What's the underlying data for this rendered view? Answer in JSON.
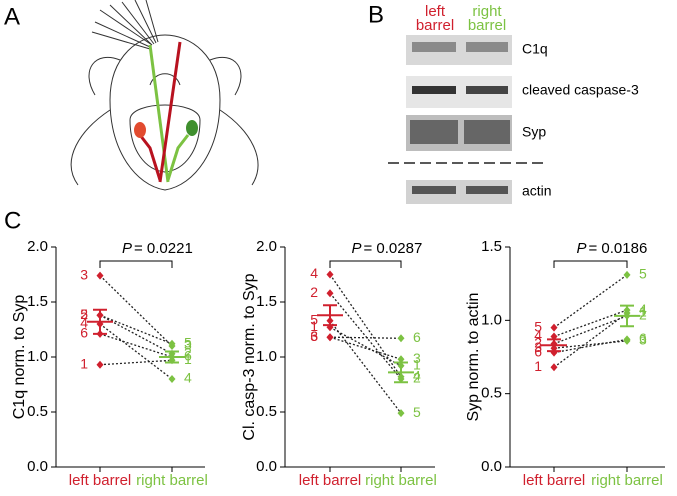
{
  "panels": {
    "a": "A",
    "b": "B",
    "c": "C"
  },
  "blot": {
    "columns": [
      "left\nbarrel",
      "right\nbarrel"
    ],
    "bands": [
      "C1q",
      "cleaved caspase-3",
      "Syp",
      "actin"
    ]
  },
  "chart_data": [
    {
      "type": "paired-dot",
      "ylabel": "C1q norm. to Syp",
      "categories": [
        "left barrel",
        "right barrel"
      ],
      "colors": [
        "#d0202e",
        "#7cc242"
      ],
      "ylim": [
        0,
        2
      ],
      "yticks": [
        {
          "value": 0,
          "label": "0.0"
        },
        0.5,
        {
          "value": 1,
          "label": "1.0"
        },
        1.5,
        {
          "value": 2,
          "label": "2.0"
        }
      ],
      "series": [
        {
          "name": "1",
          "values": [
            0.93,
            0.97
          ]
        },
        {
          "name": "2",
          "values": [
            1.38,
            1.03
          ]
        },
        {
          "name": "3",
          "values": [
            1.74,
            1.1
          ]
        },
        {
          "name": "4",
          "values": [
            1.3,
            0.8
          ]
        },
        {
          "name": "5",
          "values": [
            1.38,
            1.12
          ]
        },
        {
          "name": "6",
          "values": [
            1.21,
            1.0
          ]
        }
      ],
      "mean": [
        1.32,
        1.0
      ],
      "sem": [
        0.11,
        0.05
      ],
      "annotation": {
        "symbol": "P",
        "text": "= 0.0221"
      }
    },
    {
      "type": "paired-dot",
      "ylabel": "Cl. casp-3 norm. to Syp",
      "categories": [
        "left barrel",
        "right barrel"
      ],
      "colors": [
        "#d0202e",
        "#7cc242"
      ],
      "ylim": [
        0,
        2
      ],
      "yticks": [
        {
          "value": 0,
          "label": "0.0"
        },
        0.5,
        {
          "value": 1,
          "label": "1.0"
        },
        1.5,
        {
          "value": 2,
          "label": "2.0"
        }
      ],
      "series": [
        {
          "name": "1",
          "values": [
            1.27,
            0.92
          ]
        },
        {
          "name": "2",
          "values": [
            1.58,
            0.8
          ]
        },
        {
          "name": "3",
          "values": [
            1.18,
            0.98
          ]
        },
        {
          "name": "4",
          "values": [
            1.75,
            0.82
          ]
        },
        {
          "name": "5",
          "values": [
            1.33,
            0.49
          ]
        },
        {
          "name": "6",
          "values": [
            1.18,
            1.17
          ]
        }
      ],
      "mean": [
        1.38,
        0.86
      ],
      "sem": [
        0.09,
        0.09
      ],
      "annotation": {
        "symbol": "P",
        "text": "= 0.0287"
      }
    },
    {
      "type": "paired-dot",
      "ylabel": "Syp norm. to actin",
      "categories": [
        "left barrel",
        "right barrel"
      ],
      "colors": [
        "#d0202e",
        "#7cc242"
      ],
      "ylim": [
        0,
        1.5
      ],
      "yticks": [
        {
          "value": 0,
          "label": "0.0"
        },
        0.5,
        {
          "value": 1,
          "label": "1.0"
        },
        1.5
      ],
      "series": [
        {
          "name": "1",
          "values": [
            0.68,
            1.05
          ]
        },
        {
          "name": "2",
          "values": [
            0.84,
            1.03
          ]
        },
        {
          "name": "3",
          "values": [
            0.81,
            0.86
          ]
        },
        {
          "name": "4",
          "values": [
            0.89,
            1.07
          ]
        },
        {
          "name": "5",
          "values": [
            0.95,
            1.31
          ]
        },
        {
          "name": "6",
          "values": [
            0.78,
            0.87
          ]
        }
      ],
      "mean": [
        0.83,
        1.03
      ],
      "sem": [
        0.04,
        0.07
      ],
      "annotation": {
        "symbol": "P",
        "text": "= 0.0186"
      }
    }
  ]
}
